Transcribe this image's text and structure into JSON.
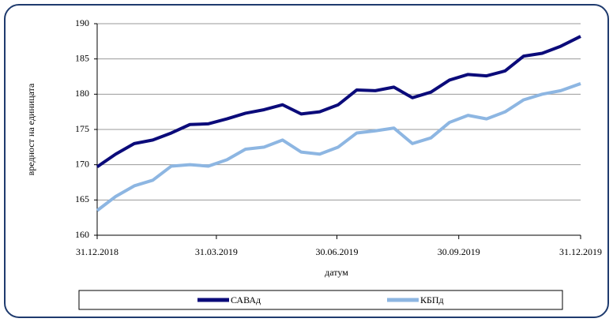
{
  "chart_data": {
    "type": "line",
    "x_label": "датум",
    "y_label": "вредност на единицата",
    "x": [
      "31.12.2018",
      "14.01.2019",
      "28.01.2019",
      "11.02.2019",
      "25.02.2019",
      "11.03.2019",
      "25.03.2019",
      "08.04.2019",
      "22.04.2019",
      "06.05.2019",
      "20.05.2019",
      "03.06.2019",
      "17.06.2019",
      "01.07.2019",
      "15.07.2019",
      "29.07.2019",
      "12.08.2019",
      "26.08.2019",
      "09.09.2019",
      "23.09.2019",
      "07.10.2019",
      "21.10.2019",
      "04.11.2019",
      "18.11.2019",
      "02.12.2019",
      "16.12.2019",
      "31.12.2019"
    ],
    "series": [
      {
        "name": "САВАд",
        "color": "#0b0b7a",
        "values": [
          169.7,
          171.5,
          173.0,
          173.5,
          174.5,
          175.7,
          175.8,
          176.5,
          177.3,
          177.8,
          178.5,
          177.2,
          177.5,
          178.5,
          180.6,
          180.5,
          181.0,
          179.5,
          180.3,
          182.0,
          182.8,
          182.6,
          183.3,
          185.4,
          185.8,
          186.8,
          188.2
        ]
      },
      {
        "name": "КБПд",
        "color": "#8db6e2",
        "values": [
          163.5,
          165.5,
          167.0,
          167.8,
          169.8,
          170.0,
          169.8,
          170.7,
          172.2,
          172.5,
          173.5,
          171.8,
          171.5,
          172.5,
          174.5,
          174.8,
          175.2,
          173.0,
          173.8,
          176.0,
          177.0,
          176.5,
          177.5,
          179.2,
          180.0,
          180.5,
          181.5
        ]
      }
    ],
    "xlim": [
      "31.12.2018",
      "31.12.2019"
    ],
    "xticks": [
      "31.12.2018",
      "31.03.2019",
      "30.06.2019",
      "30.09.2019",
      "31.12.2019"
    ],
    "ylim": [
      160,
      190
    ],
    "yticks": [
      160,
      165,
      170,
      175,
      180,
      185,
      190
    ],
    "grid": true,
    "legend": "bottom"
  }
}
